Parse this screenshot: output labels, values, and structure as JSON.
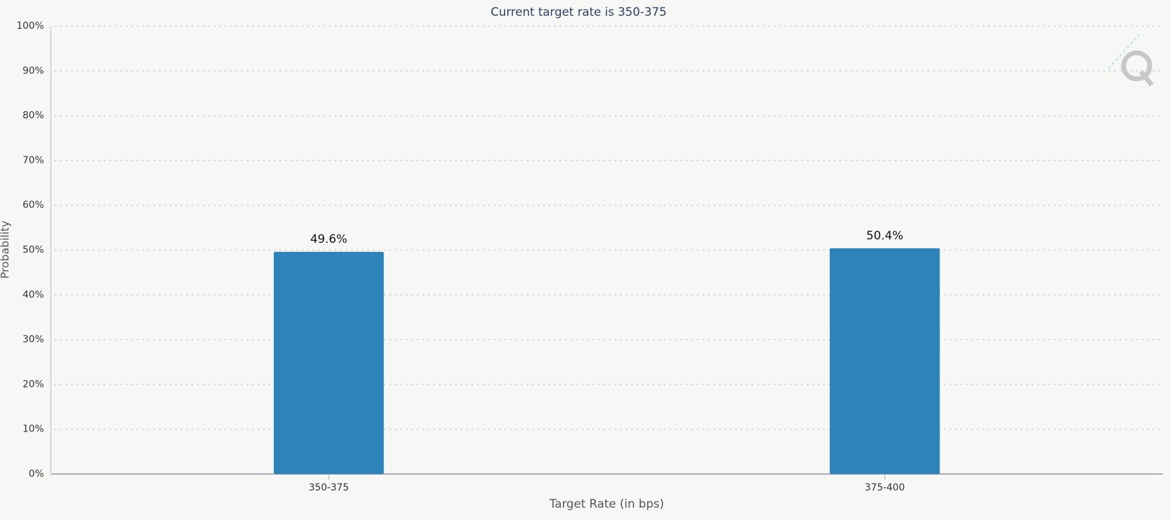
{
  "chart_data": {
    "type": "bar",
    "title": "Current target rate is 350-375",
    "x_label": "Target Rate (in bps)",
    "y_label": "Probability",
    "categories": [
      "350-375",
      "375-400"
    ],
    "values": [
      49.6,
      50.4
    ],
    "value_labels": [
      "49.6%",
      "50.4%"
    ],
    "color": "#2e83bb",
    "ylim": [
      0,
      100
    ],
    "yticks": [
      {
        "value": 0,
        "label": "0%"
      },
      {
        "value": 10,
        "label": "10%"
      },
      {
        "value": 20,
        "label": "20%"
      },
      {
        "value": 30,
        "label": "30%"
      },
      {
        "value": 40,
        "label": "40%"
      },
      {
        "value": 50,
        "label": "50%"
      },
      {
        "value": 60,
        "label": "60%"
      },
      {
        "value": 70,
        "label": "70%"
      },
      {
        "value": 80,
        "label": "80%"
      },
      {
        "value": 90,
        "label": "90%"
      },
      {
        "value": 100,
        "label": "100%"
      }
    ],
    "grid": true
  }
}
